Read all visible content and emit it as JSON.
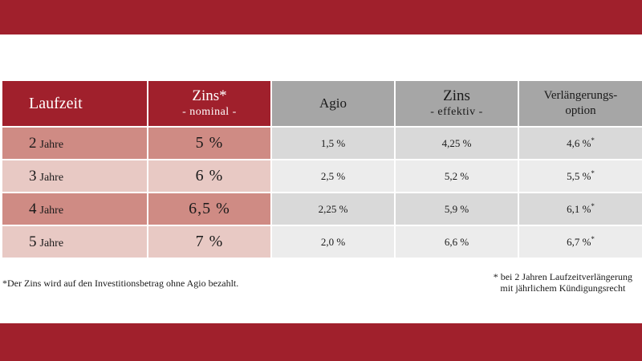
{
  "colors": {
    "brand_red": "#a0202c",
    "header_grey": "#a6a6a6",
    "row_red_dark": "#cf8b84",
    "row_red_light": "#e8c9c4",
    "row_grey_dark": "#d9d9d9",
    "row_grey_light": "#ececec"
  },
  "table": {
    "headers": {
      "term": "Laufzeit",
      "nominal_main": "Zins*",
      "nominal_sub": "- nominal -",
      "agio": "Agio",
      "effective_main": "Zins",
      "effective_sub": "- effektiv -",
      "option_line1": "Verlängerungs-",
      "option_line2": "option"
    },
    "rows": [
      {
        "term_num": "2",
        "term_unit": "Jahre",
        "nominal": "5 %",
        "agio": "1,5 %",
        "effective": "4,25 %",
        "option": "4,6 %",
        "option_mark": "*"
      },
      {
        "term_num": "3",
        "term_unit": "Jahre",
        "nominal": "6 %",
        "agio": "2,5 %",
        "effective": "5,2 %",
        "option": "5,5 %",
        "option_mark": "*"
      },
      {
        "term_num": "4",
        "term_unit": "Jahre",
        "nominal": "6,5 %",
        "agio": "2,25 %",
        "effective": "5,9 %",
        "option": "6,1 %",
        "option_mark": "*"
      },
      {
        "term_num": "5",
        "term_unit": "Jahre",
        "nominal": "7 %",
        "agio": "2,0 %",
        "effective": "6,6 %",
        "option": "6,7 %",
        "option_mark": "*"
      }
    ]
  },
  "footnotes": {
    "left": "*Der Zins wird auf den Investitionsbetrag ohne Agio bezahlt.",
    "right_line1": "* bei 2 Jahren Laufzeitverlängerung",
    "right_line2": "mit jährlichem Kündigungsrecht"
  }
}
